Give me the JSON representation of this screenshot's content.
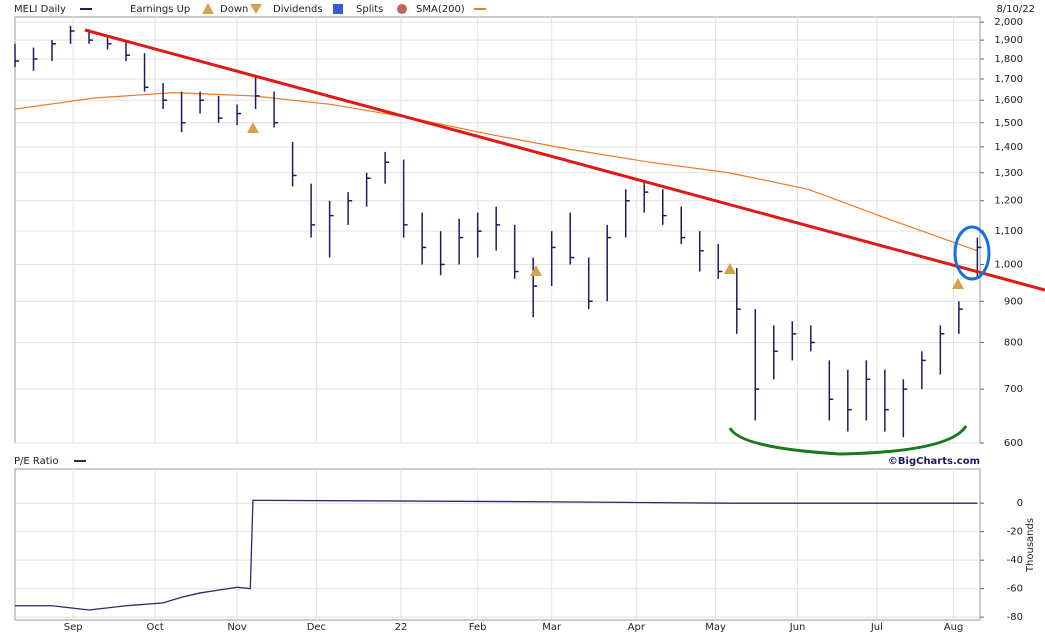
{
  "chart_data": [
    {
      "type": "ohlc",
      "title": "MELI Daily",
      "legend": [
        "Earnings Up",
        "Down",
        "Dividends",
        "Splits"
      ],
      "date": "8/10/22",
      "credit": "©BigCharts.com",
      "log_scale": true,
      "grid": true,
      "color": "#1c1c5e",
      "x": [
        0,
        7,
        14,
        21,
        28,
        35,
        42,
        49,
        56,
        63,
        70,
        77,
        84,
        91,
        98,
        105,
        112,
        119,
        126,
        133,
        140,
        147,
        154,
        161,
        168,
        175,
        182,
        189,
        196,
        203,
        210,
        217,
        224,
        231,
        238,
        245,
        252,
        259,
        266,
        273,
        280,
        287,
        294,
        301,
        308,
        315,
        322,
        329,
        336,
        343,
        350,
        357,
        364
      ],
      "high": [
        1880,
        1860,
        1900,
        1980,
        1960,
        1920,
        1900,
        1830,
        1680,
        1640,
        1640,
        1620,
        1580,
        1720,
        1640,
        1420,
        1260,
        1200,
        1230,
        1300,
        1380,
        1350,
        1160,
        1100,
        1140,
        1160,
        1180,
        1120,
        1020,
        1100,
        1160,
        1020,
        1120,
        1240,
        1270,
        1240,
        1180,
        1100,
        1060,
        990,
        880,
        840,
        850,
        840,
        760,
        740,
        760,
        740,
        720,
        780,
        840,
        900,
        1080
      ],
      "low": [
        1760,
        1740,
        1790,
        1880,
        1880,
        1850,
        1790,
        1640,
        1560,
        1460,
        1540,
        1500,
        1490,
        1560,
        1480,
        1250,
        1080,
        1020,
        1120,
        1180,
        1260,
        1080,
        1000,
        970,
        1000,
        1020,
        1040,
        960,
        860,
        940,
        1000,
        880,
        900,
        1080,
        1160,
        1120,
        1060,
        980,
        960,
        820,
        640,
        720,
        760,
        780,
        640,
        620,
        640,
        620,
        610,
        700,
        730,
        820,
        960
      ],
      "close": [
        1790,
        1800,
        1880,
        1950,
        1900,
        1880,
        1820,
        1660,
        1600,
        1500,
        1600,
        1520,
        1540,
        1620,
        1500,
        1290,
        1120,
        1150,
        1200,
        1280,
        1340,
        1120,
        1050,
        1000,
        1080,
        1100,
        1120,
        980,
        940,
        1050,
        1020,
        900,
        1080,
        1200,
        1230,
        1150,
        1080,
        1040,
        980,
        880,
        700,
        780,
        820,
        800,
        680,
        660,
        720,
        660,
        700,
        760,
        820,
        880,
        1050
      ],
      "sma": {
        "name": "SMA(200)",
        "color": "#f07a2a",
        "x": [
          0,
          30,
          60,
          90,
          120,
          150,
          180,
          210,
          240,
          270,
          300,
          330,
          364
        ],
        "values": [
          1560,
          1610,
          1635,
          1620,
          1580,
          1520,
          1450,
          1390,
          1340,
          1300,
          1240,
          1140,
          1040
        ]
      },
      "xlim": [
        0,
        365
      ],
      "ylim": [
        600,
        2030
      ],
      "xticks": [
        {
          "value": 22,
          "label": "Sep"
        },
        {
          "value": 53,
          "label": "Oct"
        },
        {
          "value": 84,
          "label": "Nov"
        },
        {
          "value": 114,
          "label": "Dec"
        },
        {
          "value": 146,
          "label": "22"
        },
        {
          "value": 175,
          "label": "Feb"
        },
        {
          "value": 203,
          "label": "Mar"
        },
        {
          "value": 235,
          "label": "Apr"
        },
        {
          "value": 265,
          "label": "May"
        },
        {
          "value": 296,
          "label": "Jun"
        },
        {
          "value": 326,
          "label": "Jul"
        },
        {
          "value": 355,
          "label": "Aug"
        }
      ],
      "yticks": [
        600,
        700,
        800,
        900,
        {
          "value": 1000,
          "label": "1,000"
        },
        {
          "value": 1100,
          "label": "1,100"
        },
        {
          "value": 1200,
          "label": "1,200"
        },
        {
          "value": 1300,
          "label": "1,300"
        },
        {
          "value": 1400,
          "label": "1,400"
        },
        {
          "value": 1500,
          "label": "1,500"
        },
        {
          "value": 1600,
          "label": "1,600"
        },
        {
          "value": 1700,
          "label": "1,700"
        },
        {
          "value": 1800,
          "label": "1,800"
        },
        {
          "value": 1900,
          "label": "1,900"
        },
        {
          "value": 2000,
          "label": "2,000"
        }
      ]
    },
    {
      "type": "line",
      "title": "P/E Ratio",
      "y_label": "Thousands",
      "grid": true,
      "series": [
        {
          "name": "P/E Ratio",
          "color": "#2a2a66",
          "x": [
            0,
            14,
            28,
            42,
            56,
            63,
            70,
            77,
            84,
            89,
            90,
            95,
            200,
            270,
            300,
            364
          ],
          "values": [
            -72,
            -72,
            -75,
            -72,
            -70,
            -66,
            -63,
            -61,
            -59,
            -60,
            2,
            2,
            1,
            0,
            0,
            0
          ]
        }
      ],
      "xlim": [
        0,
        365
      ],
      "ylim": [
        -82,
        24
      ],
      "yticks": [
        -80,
        -60,
        -40,
        -20,
        0
      ]
    }
  ]
}
